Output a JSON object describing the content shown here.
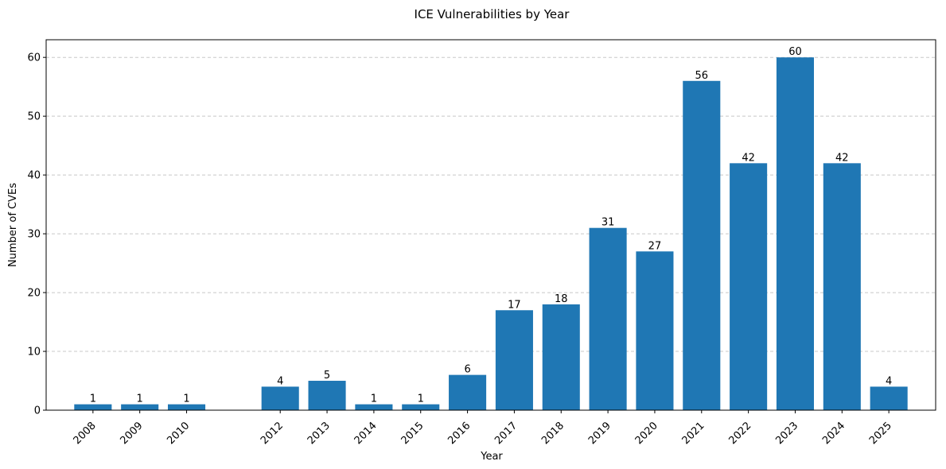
{
  "chart_data": {
    "type": "bar",
    "title": "ICE Vulnerabilities by Year",
    "xlabel": "Year",
    "ylabel": "Number of CVEs",
    "x": [
      2008,
      2009,
      2010,
      2012,
      2013,
      2014,
      2015,
      2016,
      2017,
      2018,
      2019,
      2020,
      2021,
      2022,
      2023,
      2024,
      2025
    ],
    "values": [
      1,
      1,
      1,
      4,
      5,
      1,
      1,
      6,
      17,
      18,
      31,
      27,
      56,
      42,
      60,
      42,
      4
    ],
    "xlim": [
      2007,
      2026
    ],
    "ylim": [
      0,
      63
    ],
    "yticks": [
      0,
      10,
      20,
      30,
      40,
      50,
      60
    ],
    "grid": "y-dashed",
    "bar_color": "#1f77b4",
    "grid_color": "#c8c8c8"
  }
}
